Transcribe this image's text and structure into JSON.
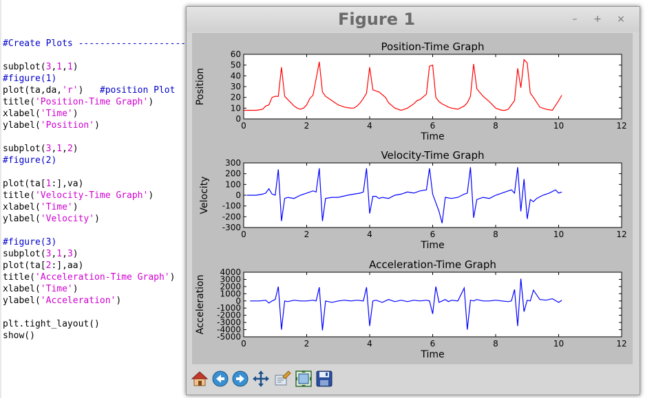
{
  "editor": {
    "lines": [
      [],
      [],
      [
        [
          "#Create Plots ---------------------",
          "blue"
        ]
      ],
      [],
      [
        [
          "subplot(",
          "black"
        ],
        [
          "3",
          "magenta"
        ],
        [
          ",",
          "black"
        ],
        [
          "1",
          "magenta"
        ],
        [
          ",",
          "black"
        ],
        [
          "1",
          "magenta"
        ],
        [
          ")",
          "black"
        ]
      ],
      [
        [
          "#figure(1)",
          "blue"
        ]
      ],
      [
        [
          "plot(ta,da,",
          "black"
        ],
        [
          "'r'",
          "magenta"
        ],
        [
          ")   ",
          "black"
        ],
        [
          "#position Plot",
          "blue"
        ]
      ],
      [
        [
          "title(",
          "black"
        ],
        [
          "'Position-Time Graph'",
          "magenta"
        ],
        [
          ")",
          "black"
        ]
      ],
      [
        [
          "xlabel(",
          "black"
        ],
        [
          "'Time'",
          "magenta"
        ],
        [
          ")",
          "black"
        ]
      ],
      [
        [
          "ylabel(",
          "black"
        ],
        [
          "'Position'",
          "magenta"
        ],
        [
          ")",
          "black"
        ]
      ],
      [],
      [
        [
          "subplot(",
          "black"
        ],
        [
          "3",
          "magenta"
        ],
        [
          ",",
          "black"
        ],
        [
          "1",
          "magenta"
        ],
        [
          ",",
          "black"
        ],
        [
          "2",
          "magenta"
        ],
        [
          ")",
          "black"
        ]
      ],
      [
        [
          "#figure(2)",
          "blue"
        ]
      ],
      [],
      [
        [
          "plot(ta[",
          "black"
        ],
        [
          "1",
          "magenta"
        ],
        [
          ":],va)",
          "black"
        ]
      ],
      [
        [
          "title(",
          "black"
        ],
        [
          "'Velocity-Time Graph'",
          "magenta"
        ],
        [
          ")",
          "black"
        ]
      ],
      [
        [
          "xlabel(",
          "black"
        ],
        [
          "'Time'",
          "magenta"
        ],
        [
          ")",
          "black"
        ]
      ],
      [
        [
          "ylabel(",
          "black"
        ],
        [
          "'Velocity'",
          "magenta"
        ],
        [
          ")",
          "black"
        ]
      ],
      [],
      [
        [
          "#figure(3)",
          "blue"
        ]
      ],
      [
        [
          "subplot(",
          "black"
        ],
        [
          "3",
          "magenta"
        ],
        [
          ",",
          "black"
        ],
        [
          "1",
          "magenta"
        ],
        [
          ",",
          "black"
        ],
        [
          "3",
          "magenta"
        ],
        [
          ")",
          "black"
        ]
      ],
      [
        [
          "plot(ta[",
          "black"
        ],
        [
          "2",
          "magenta"
        ],
        [
          ":],aa)",
          "black"
        ]
      ],
      [
        [
          "title(",
          "black"
        ],
        [
          "'Acceleration-Time Graph'",
          "magenta"
        ],
        [
          ")",
          "black"
        ]
      ],
      [
        [
          "xlabel(",
          "black"
        ],
        [
          "'Time'",
          "magenta"
        ],
        [
          ")",
          "black"
        ]
      ],
      [
        [
          "ylabel(",
          "black"
        ],
        [
          "'Acceleration'",
          "magenta"
        ],
        [
          ")",
          "black"
        ]
      ],
      [],
      [
        [
          "plt.tight_layout()",
          "black"
        ]
      ],
      [
        [
          "show()",
          "black"
        ]
      ]
    ],
    "colors": {
      "black": "#000000",
      "blue": "#0000cc",
      "magenta": "#d000d0"
    }
  },
  "window": {
    "title": "Figure 1",
    "buttons": {
      "minimize": "–",
      "maximize": "+",
      "close": "×"
    }
  },
  "toolbar": {
    "icons": [
      "home-icon",
      "back-arrow-icon",
      "forward-arrow-icon",
      "pan-move-icon",
      "zoom-to-rect-icon",
      "configure-subplots-icon",
      "save-floppy-icon"
    ]
  },
  "chart_data": [
    {
      "type": "line",
      "title": "Position-Time Graph",
      "xlabel": "Time",
      "ylabel": "Position",
      "xlim": [
        0,
        12
      ],
      "ylim": [
        0,
        60
      ],
      "xticks": [
        0,
        2,
        4,
        6,
        8,
        10,
        12
      ],
      "yticks": [
        0,
        10,
        20,
        30,
        40,
        50,
        60
      ],
      "color": "#ff0000",
      "series": [
        {
          "x": [
            0,
            0.2,
            0.4,
            0.6,
            0.7,
            0.8,
            0.9,
            1.0,
            1.1,
            1.2,
            1.3,
            1.4,
            1.6,
            1.7,
            1.8,
            1.9,
            2.0,
            2.1,
            2.2,
            2.4,
            2.5,
            2.6,
            2.8,
            3.0,
            3.2,
            3.4,
            3.5,
            3.6,
            3.7,
            3.8,
            3.9,
            4.0,
            4.1,
            4.2,
            4.3,
            4.5,
            4.6,
            4.8,
            5.0,
            5.2,
            5.4,
            5.5,
            5.6,
            5.8,
            5.9,
            6.0,
            6.1,
            6.2,
            6.3,
            6.5,
            6.6,
            6.8,
            7.0,
            7.1,
            7.2,
            7.3,
            7.4,
            7.6,
            7.8,
            8.0,
            8.2,
            8.3,
            8.4,
            8.5,
            8.6,
            8.7,
            8.8,
            8.9,
            9.0,
            9.1,
            9.2,
            9.4,
            9.6,
            9.8,
            10.0,
            10.1
          ],
          "y": [
            8,
            8,
            8,
            9,
            12,
            13,
            20,
            21,
            21,
            48,
            21,
            18,
            12,
            10,
            9,
            10,
            13,
            19,
            22,
            53,
            25,
            21,
            17,
            13,
            11,
            10,
            10,
            12,
            15,
            19,
            24,
            48,
            27,
            26,
            25,
            20,
            15,
            10,
            8,
            10,
            14,
            17,
            18,
            23,
            49,
            50,
            20,
            16,
            14,
            11,
            10,
            9,
            12,
            15,
            21,
            51,
            28,
            21,
            16,
            10,
            8,
            8,
            9,
            13,
            17,
            47,
            29,
            55,
            52,
            24,
            20,
            11,
            9,
            8,
            17,
            22
          ]
        }
      ]
    },
    {
      "type": "line",
      "title": "Velocity-Time Graph",
      "xlabel": "Time",
      "ylabel": "Velocity",
      "xlim": [
        0,
        12
      ],
      "ylim": [
        -300,
        300
      ],
      "xticks": [
        0,
        2,
        4,
        6,
        8,
        10,
        12
      ],
      "yticks": [
        -300,
        -200,
        -100,
        0,
        100,
        200,
        300
      ],
      "color": "#0000ff",
      "series": [
        {
          "x": [
            0.1,
            0.4,
            0.6,
            0.7,
            0.8,
            0.9,
            1.0,
            1.1,
            1.2,
            1.3,
            1.4,
            1.6,
            1.8,
            2.0,
            2.2,
            2.3,
            2.4,
            2.5,
            2.6,
            2.8,
            3.0,
            3.3,
            3.5,
            3.7,
            3.8,
            3.9,
            4.0,
            4.1,
            4.2,
            4.3,
            4.4,
            4.6,
            4.8,
            5.0,
            5.2,
            5.4,
            5.6,
            5.8,
            5.9,
            6.0,
            6.2,
            6.3,
            6.4,
            6.6,
            6.8,
            7.0,
            7.1,
            7.2,
            7.3,
            7.4,
            7.6,
            7.8,
            8.0,
            8.2,
            8.3,
            8.4,
            8.5,
            8.6,
            8.7,
            8.8,
            8.9,
            9.0,
            9.1,
            9.2,
            9.3,
            9.5,
            9.7,
            9.9,
            10.0,
            10.1
          ],
          "y": [
            0,
            0,
            10,
            20,
            60,
            10,
            0,
            240,
            -240,
            -30,
            -20,
            -30,
            0,
            20,
            40,
            30,
            250,
            -240,
            -30,
            -20,
            -20,
            0,
            10,
            20,
            30,
            250,
            -170,
            -10,
            -10,
            -30,
            -20,
            -30,
            0,
            10,
            30,
            20,
            40,
            50,
            250,
            10,
            -150,
            -260,
            -20,
            -30,
            -20,
            10,
            20,
            260,
            -210,
            -40,
            -20,
            -30,
            0,
            20,
            30,
            40,
            50,
            20,
            260,
            -150,
            150,
            -220,
            -40,
            -60,
            -30,
            0,
            20,
            50,
            20,
            30
          ]
        }
      ]
    },
    {
      "type": "line",
      "title": "Acceleration-Time Graph",
      "xlabel": "Time",
      "ylabel": "Acceleration",
      "xlim": [
        0,
        12
      ],
      "ylim": [
        -5000,
        4000
      ],
      "xticks": [
        0,
        2,
        4,
        6,
        8,
        10,
        12
      ],
      "yticks": [
        -5000,
        -4000,
        -3000,
        -2000,
        -1000,
        0,
        1000,
        2000,
        3000,
        4000
      ],
      "color": "#0000ff",
      "series": [
        {
          "x": [
            0.2,
            0.5,
            0.7,
            0.8,
            0.9,
            1.0,
            1.1,
            1.2,
            1.3,
            1.4,
            1.6,
            1.8,
            2.0,
            2.2,
            2.3,
            2.4,
            2.5,
            2.6,
            2.8,
            3.0,
            3.2,
            3.4,
            3.6,
            3.8,
            3.9,
            4.0,
            4.1,
            4.2,
            4.4,
            4.6,
            4.8,
            5.0,
            5.2,
            5.4,
            5.6,
            5.8,
            5.9,
            6.0,
            6.1,
            6.2,
            6.4,
            6.5,
            6.6,
            6.8,
            7.0,
            7.1,
            7.2,
            7.3,
            7.4,
            7.6,
            7.8,
            8.0,
            8.2,
            8.4,
            8.5,
            8.6,
            8.7,
            8.8,
            8.9,
            9.0,
            9.1,
            9.2,
            9.4,
            9.6,
            9.8,
            10.0,
            10.1
          ],
          "y": [
            0,
            0,
            100,
            -300,
            0,
            200,
            2000,
            -4000,
            0,
            -100,
            100,
            0,
            0,
            100,
            0,
            1900,
            -4100,
            0,
            -200,
            0,
            100,
            0,
            100,
            0,
            1900,
            -3500,
            0,
            100,
            -200,
            200,
            -100,
            100,
            -100,
            100,
            0,
            100,
            0,
            -1800,
            2000,
            -200,
            200,
            -100,
            100,
            0,
            1800,
            -4000,
            100,
            0,
            200,
            0,
            0,
            100,
            0,
            -100,
            0,
            1600,
            -3500,
            3100,
            -1500,
            100,
            0,
            1500,
            200,
            100,
            300,
            -200,
            100
          ]
        }
      ]
    }
  ]
}
